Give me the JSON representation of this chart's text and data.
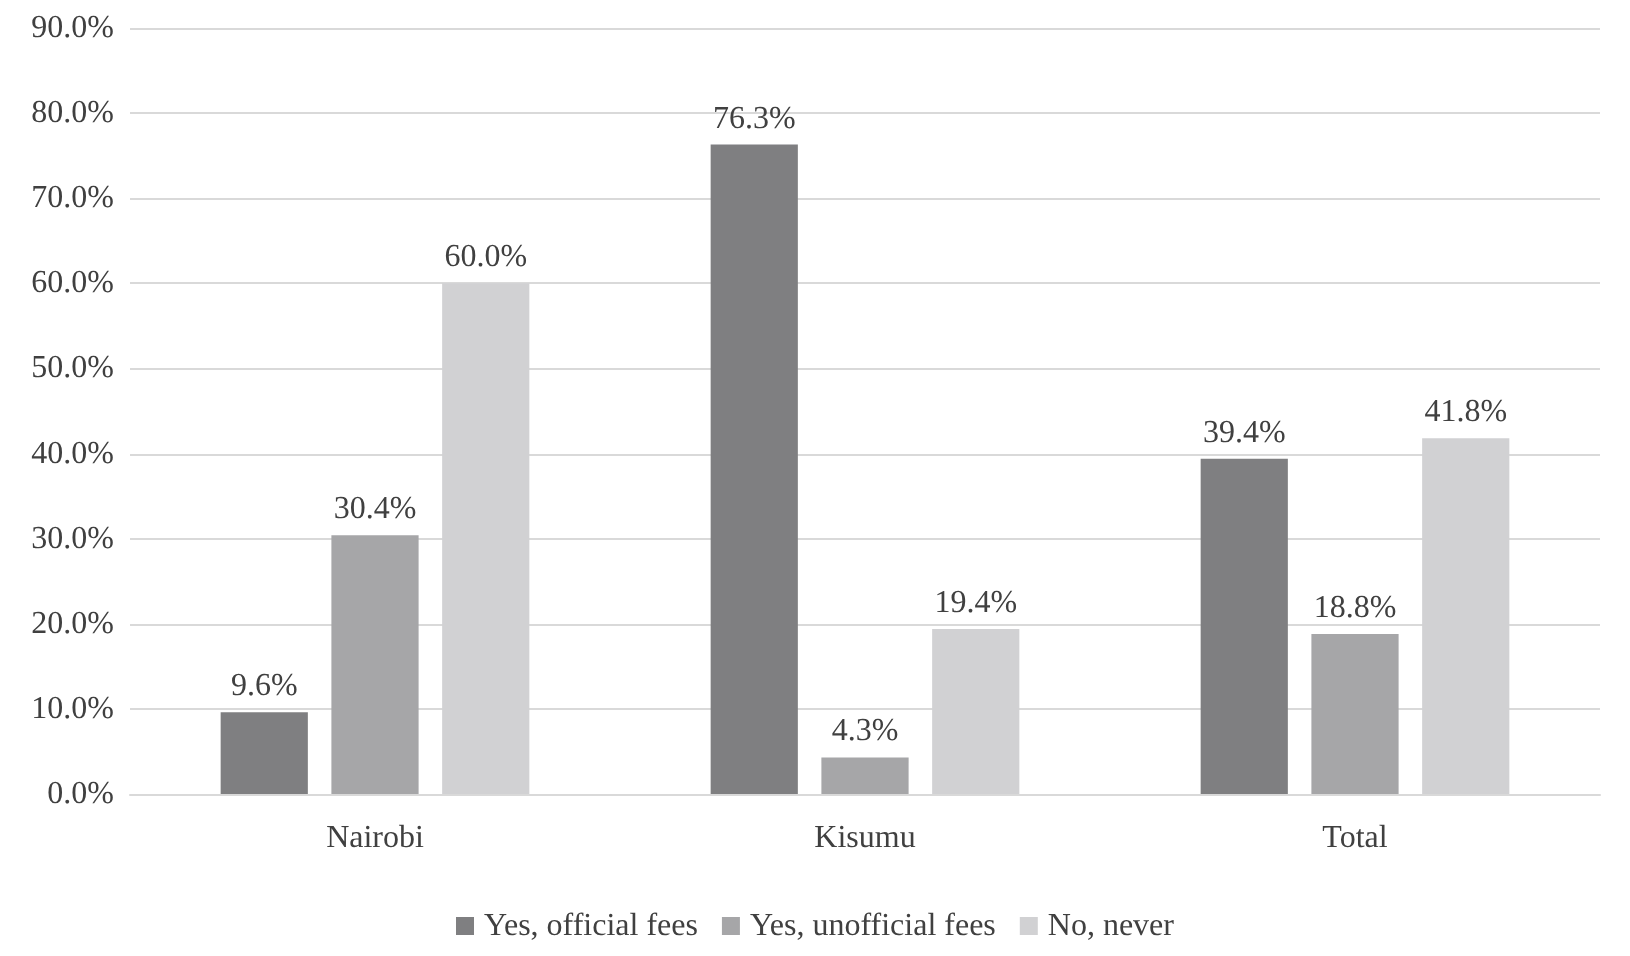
{
  "chart_data": {
    "type": "bar",
    "categories": [
      "Nairobi",
      "Kisumu",
      "Total"
    ],
    "series": [
      {
        "name": "Yes, official fees",
        "color": "#7f7f81",
        "values": [
          9.6,
          76.3,
          39.4
        ],
        "value_labels": [
          "9.6%",
          "76.3%",
          "39.4%"
        ]
      },
      {
        "name": "Yes, unofficial fees",
        "color": "#a6a6a8",
        "values": [
          30.4,
          4.3,
          18.8
        ],
        "value_labels": [
          "30.4%",
          "4.3%",
          "18.8%"
        ]
      },
      {
        "name": "No, never",
        "color": "#d1d1d3",
        "values": [
          60.0,
          19.4,
          41.8
        ],
        "value_labels": [
          "60.0%",
          "19.4%",
          "41.8%"
        ]
      }
    ],
    "ylim": [
      0,
      90
    ],
    "yticks": [
      {
        "value": 0,
        "label": "0.0%"
      },
      {
        "value": 10,
        "label": "10.0%"
      },
      {
        "value": 20,
        "label": "20.0%"
      },
      {
        "value": 30,
        "label": "30.0%"
      },
      {
        "value": 40,
        "label": "40.0%"
      },
      {
        "value": 50,
        "label": "50.0%"
      },
      {
        "value": 60,
        "label": "60.0%"
      },
      {
        "value": 70,
        "label": "70.0%"
      },
      {
        "value": 80,
        "label": "80.0%"
      },
      {
        "value": 90,
        "label": "90.0%"
      }
    ],
    "grid": "y",
    "legend": "bottom"
  }
}
